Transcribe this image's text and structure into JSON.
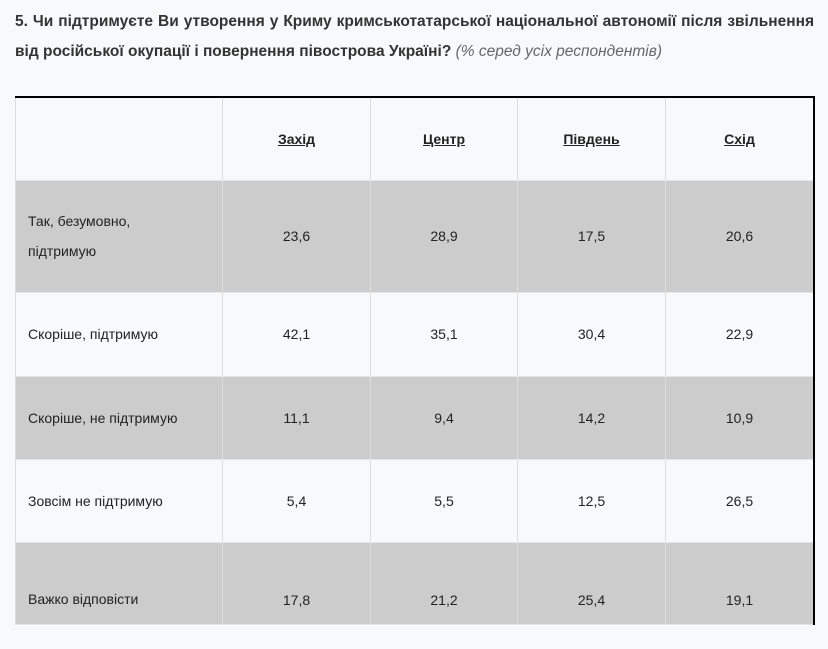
{
  "question": {
    "text": "5. Чи підтримуєте Ви утворення у Криму кримськотатарської національної автономії після звільнення від російської окупації і повернення півострова Україні?",
    "note": "(% серед усіх респондентів)"
  },
  "table": {
    "columns": [
      "Захід",
      "Центр",
      "Південь",
      "Схід"
    ],
    "rows": [
      {
        "label": "Так, безумовно, підтримую",
        "values": [
          "23,6",
          "28,9",
          "17,5",
          "20,6"
        ]
      },
      {
        "label": "Скоріше, підтримую",
        "values": [
          "42,1",
          "35,1",
          "30,4",
          "22,9"
        ]
      },
      {
        "label": "Скоріше, не підтримую",
        "values": [
          "11,1",
          "9,4",
          "14,2",
          "10,9"
        ]
      },
      {
        "label": "Зовсім не підтримую",
        "values": [
          "5,4",
          "5,5",
          "12,5",
          "26,5"
        ]
      },
      {
        "label": "Важко відповісти",
        "values": [
          "17,8",
          "21,2",
          "25,4",
          "19,1"
        ]
      }
    ]
  }
}
